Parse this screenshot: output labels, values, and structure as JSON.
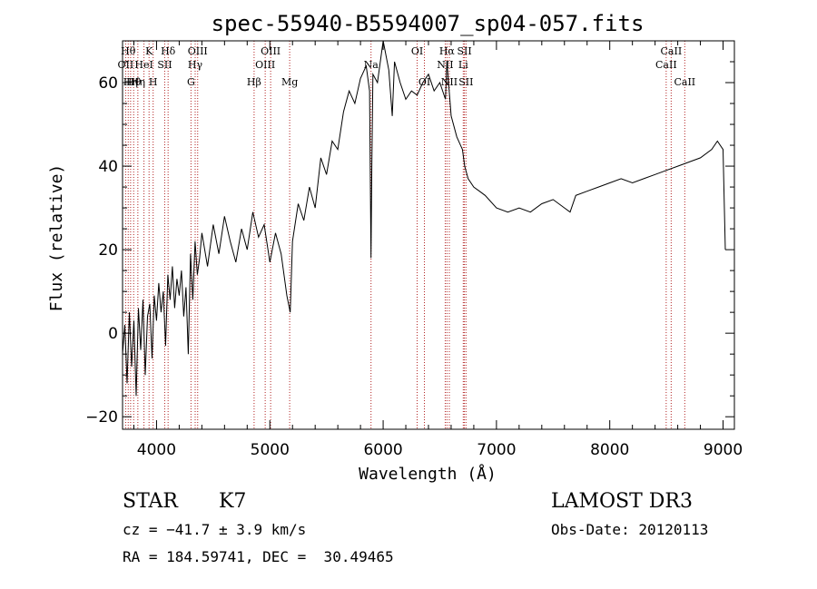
{
  "chart_data": {
    "type": "line",
    "title": "spec-55940-B5594007_sp04-057.fits",
    "xlabel": "Wavelength (Å)",
    "ylabel": "Flux (relative)",
    "xlim": [
      3700,
      9100
    ],
    "ylim": [
      -23,
      70
    ],
    "xticks": [
      4000,
      5000,
      6000,
      7000,
      8000,
      9000
    ],
    "yticks": [
      -20,
      0,
      20,
      40,
      60
    ],
    "grid": false,
    "line_color": "#000000",
    "marker_color": "#b22222",
    "series": [
      {
        "x": [
          3700,
          3720,
          3740,
          3760,
          3780,
          3800,
          3820,
          3840,
          3860,
          3880,
          3900,
          3920,
          3940,
          3960,
          3980,
          4000,
          4020,
          4040,
          4060,
          4080,
          4100,
          4120,
          4140,
          4160,
          4180,
          4200,
          4220,
          4240,
          4260,
          4280,
          4300,
          4320,
          4340,
          4360,
          4380,
          4400,
          4450,
          4500,
          4550,
          4600,
          4650,
          4700,
          4750,
          4800,
          4850,
          4900,
          4950,
          5000,
          5050,
          5100,
          5150,
          5180,
          5200,
          5250,
          5300,
          5350,
          5400,
          5450,
          5500,
          5550,
          5600,
          5650,
          5700,
          5750,
          5800,
          5850,
          5880,
          5893,
          5900,
          5910,
          5950,
          6000,
          6050,
          6080,
          6100,
          6150,
          6200,
          6250,
          6300,
          6350,
          6400,
          6450,
          6500,
          6550,
          6563,
          6600,
          6650,
          6700,
          6720,
          6750,
          6800,
          6850,
          6900,
          7000,
          7100,
          7200,
          7300,
          7400,
          7500,
          7600,
          7650,
          7700,
          7800,
          7900,
          8000,
          8100,
          8200,
          8300,
          8400,
          8500,
          8600,
          8700,
          8800,
          8900,
          8950,
          9000,
          9020
        ],
        "y": [
          -5,
          2,
          -12,
          5,
          -8,
          3,
          -15,
          6,
          -4,
          8,
          -10,
          4,
          7,
          -6,
          9,
          3,
          12,
          5,
          10,
          -3,
          14,
          8,
          16,
          6,
          13,
          9,
          15,
          4,
          11,
          -5,
          19,
          8,
          22,
          14,
          18,
          24,
          16,
          26,
          19,
          28,
          22,
          17,
          25,
          20,
          29,
          23,
          26,
          17,
          24,
          19,
          9,
          5,
          22,
          31,
          27,
          35,
          30,
          42,
          38,
          46,
          44,
          53,
          58,
          55,
          61,
          64,
          58,
          18,
          40,
          62,
          60,
          70,
          63,
          52,
          65,
          60,
          56,
          58,
          57,
          60,
          62,
          58,
          60,
          56,
          65,
          52,
          47,
          44,
          40,
          37,
          35,
          34,
          33,
          30,
          29,
          30,
          29,
          31,
          32,
          30,
          29,
          33,
          34,
          35,
          36,
          37,
          36,
          37,
          38,
          39,
          40,
          41,
          42,
          44,
          46,
          44,
          20
        ]
      }
    ],
    "line_labels": [
      {
        "lambda": 3727,
        "text": "OII",
        "row": 2
      },
      {
        "lambda": 3750,
        "text": "Hθ",
        "row": 1
      },
      {
        "lambda": 3771,
        "text": "Hη",
        "row": 3
      },
      {
        "lambda": 3798,
        "text": "Hθ",
        "row": 3
      },
      {
        "lambda": 3835,
        "text": "Hη",
        "row": 3
      },
      {
        "lambda": 3889,
        "text": "HeI",
        "row": 2
      },
      {
        "lambda": 3934,
        "text": "K",
        "row": 1
      },
      {
        "lambda": 3970,
        "text": "H",
        "row": 3
      },
      {
        "lambda": 4072,
        "text": "SII",
        "row": 2
      },
      {
        "lambda": 4102,
        "text": "Hδ",
        "row": 1
      },
      {
        "lambda": 4304,
        "text": "G",
        "row": 3
      },
      {
        "lambda": 4341,
        "text": "Hγ",
        "row": 2
      },
      {
        "lambda": 4363,
        "text": "OIII",
        "row": 1
      },
      {
        "lambda": 4861,
        "text": "Hβ",
        "row": 3
      },
      {
        "lambda": 4959,
        "text": "OIII",
        "row": 2
      },
      {
        "lambda": 5007,
        "text": "OIII",
        "row": 1
      },
      {
        "lambda": 5175,
        "text": "Mg",
        "row": 3
      },
      {
        "lambda": 5893,
        "text": "Na",
        "row": 2
      },
      {
        "lambda": 6300,
        "text": "OI",
        "row": 1
      },
      {
        "lambda": 6364,
        "text": "OI",
        "row": 3
      },
      {
        "lambda": 6548,
        "text": "NII",
        "row": 2
      },
      {
        "lambda": 6563,
        "text": "Hα",
        "row": 1
      },
      {
        "lambda": 6584,
        "text": "NII",
        "row": 3
      },
      {
        "lambda": 6707,
        "text": "Li",
        "row": 2
      },
      {
        "lambda": 6717,
        "text": "SII",
        "row": 1
      },
      {
        "lambda": 6731,
        "text": "SII",
        "row": 3
      },
      {
        "lambda": 8498,
        "text": "CaII",
        "row": 2
      },
      {
        "lambda": 8542,
        "text": "CaII",
        "row": 1
      },
      {
        "lambda": 8662,
        "text": "CaII",
        "row": 3
      }
    ]
  },
  "info": {
    "object_class": "STAR",
    "subclass": "K7",
    "cz": "cz = −41.7 ± 3.9 km/s",
    "coords": "RA = 184.59741, DEC =  30.49465",
    "survey": "LAMOST DR3",
    "obs_date": "Obs-Date: 20120113"
  }
}
